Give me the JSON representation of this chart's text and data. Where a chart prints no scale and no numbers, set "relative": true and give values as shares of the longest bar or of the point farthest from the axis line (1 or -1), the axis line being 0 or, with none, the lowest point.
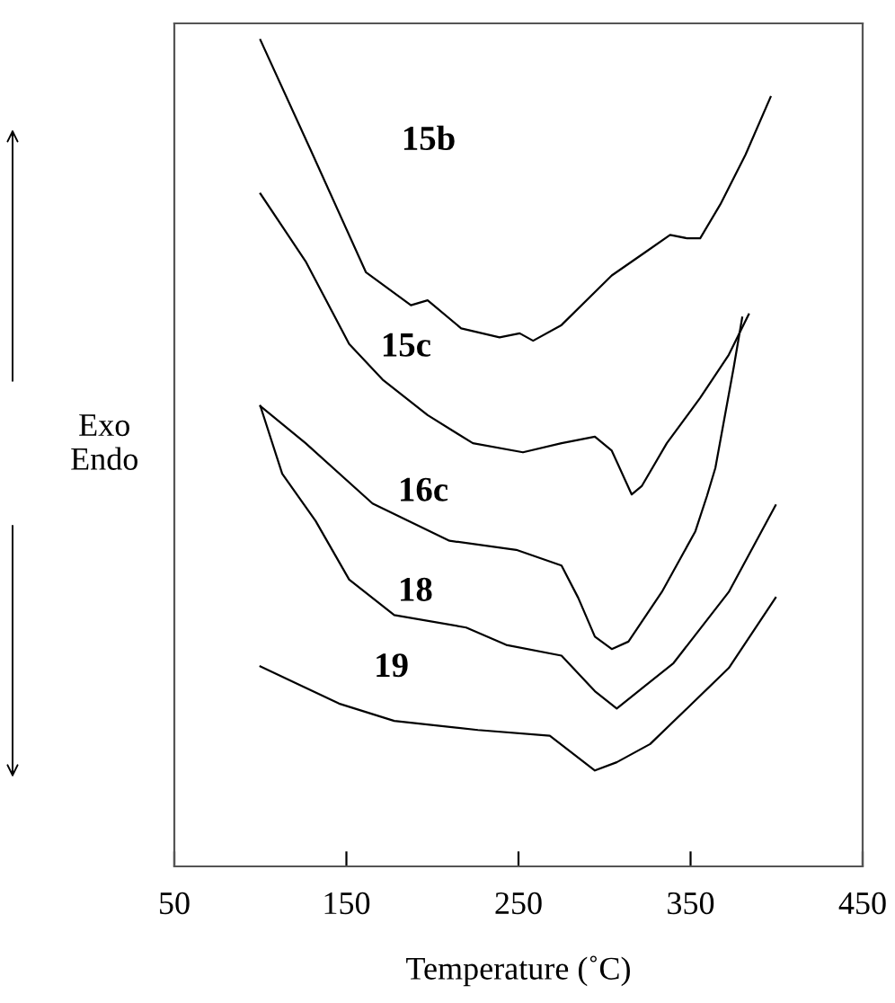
{
  "chart_data": {
    "type": "line",
    "relative": true,
    "xlabel": "Temperature (˚C)",
    "ylabel": "Exo\nEndo",
    "xlim": [
      50,
      450
    ],
    "xticks": [
      50,
      150,
      250,
      350,
      450
    ],
    "grid": false,
    "legend": false,
    "marker": "none",
    "line_style": "solid",
    "series": [
      {
        "name": "15b",
        "color": "#000000",
        "x": [
          100,
          129.2,
          161.3,
          187.5,
          197.2,
          216.7,
          239,
          250.7,
          258.5,
          275,
          304.2,
          323.6,
          338.1,
          347.9,
          355.6,
          367.3,
          381.9,
          396.5
        ],
        "values": [
          1.0,
          0.867,
          0.719,
          0.679,
          0.685,
          0.651,
          0.64,
          0.645,
          0.636,
          0.655,
          0.715,
          0.743,
          0.764,
          0.76,
          0.76,
          0.801,
          0.861,
          0.931
        ]
      },
      {
        "name": "15c",
        "color": "#000000",
        "x": [
          100,
          126.3,
          151.6,
          171,
          197.2,
          223.5,
          252.6,
          275,
          294.4,
          304.2,
          315.8,
          321.6,
          336.2,
          355.6,
          372.2,
          383.8
        ],
        "values": [
          0.814,
          0.732,
          0.632,
          0.589,
          0.546,
          0.512,
          0.501,
          0.512,
          0.52,
          0.503,
          0.45,
          0.46,
          0.512,
          0.567,
          0.619,
          0.668
        ]
      },
      {
        "name": "16c",
        "color": "#000000",
        "x": [
          100,
          126.3,
          165.2,
          209.9,
          248.7,
          275,
          284.7,
          294.4,
          304.2,
          313.9,
          333.3,
          352.7,
          359.5,
          364.4,
          375.1,
          380
        ],
        "values": [
          0.557,
          0.512,
          0.439,
          0.394,
          0.383,
          0.364,
          0.325,
          0.278,
          0.263,
          0.272,
          0.332,
          0.405,
          0.448,
          0.482,
          0.604,
          0.664
        ]
      },
      {
        "name": "18",
        "color": "#000000",
        "x": [
          100,
          112.7,
          132.1,
          151.6,
          177.8,
          219.6,
          242.9,
          275,
          294.4,
          307.1,
          340.1,
          372.2,
          399.4
        ],
        "values": [
          0.557,
          0.475,
          0.418,
          0.347,
          0.304,
          0.289,
          0.268,
          0.255,
          0.212,
          0.191,
          0.246,
          0.332,
          0.437
        ]
      },
      {
        "name": "19",
        "color": "#000000",
        "x": [
          100,
          145.7,
          177.8,
          226.4,
          268.2,
          294.4,
          307.1,
          326.5,
          372.2,
          399.4
        ],
        "values": [
          0.242,
          0.197,
          0.176,
          0.165,
          0.158,
          0.116,
          0.126,
          0.148,
          0.24,
          0.325
        ]
      }
    ]
  }
}
